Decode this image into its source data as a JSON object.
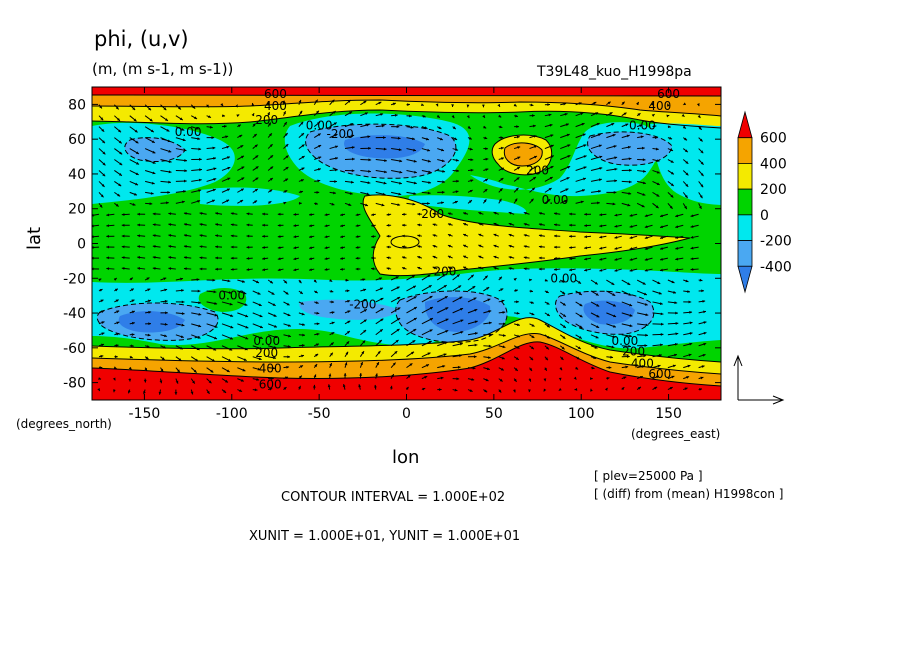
{
  "header": {
    "title": "phi, (u,v)",
    "units": "(m, (m s-1, m s-1))",
    "experiment": "T39L48_kuo_H1998pa"
  },
  "footer": {
    "contour_interval": "CONTOUR INTERVAL = 1.000E+02",
    "vector_units": "XUNIT = 1.000E+01, YUNIT = 1.000E+01",
    "level": "[ plev=25000 Pa ]",
    "diff": "[ (diff) from (mean) H1998con ]"
  },
  "colors": {
    "lt_-400": "#2f7ee8",
    "-400_-200": "#4aa8f2",
    "-200_0": "#00e8ee",
    "0_200": "#00d400",
    "200_400": "#f4ea00",
    "400_600": "#f5a400",
    "gt_600": "#f00000"
  },
  "chart_data": {
    "type": "contour",
    "variable": "phi (contours), (u,v) (vectors)",
    "xlabel": "lon",
    "xunit_label": "(degrees_east)",
    "ylabel": "lat",
    "yunit_label": "(degrees_north)",
    "xlim": [
      -180,
      180
    ],
    "ylim": [
      -90,
      90
    ],
    "xticks": [
      -150,
      -100,
      -50,
      0,
      50,
      100,
      150
    ],
    "yticks": [
      -80,
      -60,
      -40,
      -20,
      0,
      20,
      40,
      60,
      80
    ],
    "colorbar": {
      "levels": [
        -400,
        -200,
        0,
        200,
        400,
        600
      ],
      "labels": [
        "600",
        "400",
        "200",
        "0",
        "-200",
        "-400"
      ]
    },
    "contour_labels": [
      {
        "text": "600",
        "lon": -75,
        "lat": 86
      },
      {
        "text": "400",
        "lon": -75,
        "lat": 79
      },
      {
        "text": "200",
        "lon": -80,
        "lat": 71
      },
      {
        "text": "0.00",
        "lon": -125,
        "lat": 64
      },
      {
        "text": "0.00",
        "lon": -50,
        "lat": 68
      },
      {
        "text": "-200",
        "lon": -38,
        "lat": 63
      },
      {
        "text": "600",
        "lon": 150,
        "lat": 86
      },
      {
        "text": "400",
        "lon": 145,
        "lat": 79
      },
      {
        "text": "0.00",
        "lon": 135,
        "lat": 68
      },
      {
        "text": "200",
        "lon": 75,
        "lat": 42
      },
      {
        "text": "0.00",
        "lon": 85,
        "lat": 25
      },
      {
        "text": "200",
        "lon": 15,
        "lat": 17
      },
      {
        "text": "200",
        "lon": 22,
        "lat": -16
      },
      {
        "text": "0.00",
        "lon": 90,
        "lat": -20
      },
      {
        "text": "0.00",
        "lon": -100,
        "lat": -30
      },
      {
        "text": "-200",
        "lon": -25,
        "lat": -35
      },
      {
        "text": "0.00",
        "lon": -80,
        "lat": -56
      },
      {
        "text": "200",
        "lon": -80,
        "lat": -63
      },
      {
        "text": "400",
        "lon": -78,
        "lat": -72
      },
      {
        "text": "600",
        "lon": -78,
        "lat": -81
      },
      {
        "text": "0.00",
        "lon": 125,
        "lat": -56
      },
      {
        "text": "200",
        "lon": 130,
        "lat": -62
      },
      {
        "text": "400",
        "lon": 135,
        "lat": -69
      },
      {
        "text": "600",
        "lon": 145,
        "lat": -75
      }
    ],
    "features": [
      {
        "kind": "low",
        "lon": -145,
        "lat": 55,
        "value_band": "-200_0"
      },
      {
        "kind": "low",
        "lon": -20,
        "lat": 55,
        "value_band": "lt_-400"
      },
      {
        "kind": "high",
        "lon": 70,
        "lat": 50,
        "value_band": "400_600"
      },
      {
        "kind": "low",
        "lon": 130,
        "lat": 55,
        "value_band": "-400_-200"
      },
      {
        "kind": "high",
        "lon": 0,
        "lat": 0,
        "value_band": "200_400"
      },
      {
        "kind": "low",
        "lon": -145,
        "lat": -45,
        "value_band": "lt_-400"
      },
      {
        "kind": "low",
        "lon": 25,
        "lat": -45,
        "value_band": "lt_-400"
      },
      {
        "kind": "low",
        "lon": 115,
        "lat": -45,
        "value_band": "lt_-400"
      },
      {
        "kind": "high",
        "lon": 70,
        "lat": -75,
        "value_band": "gt_600"
      }
    ]
  }
}
